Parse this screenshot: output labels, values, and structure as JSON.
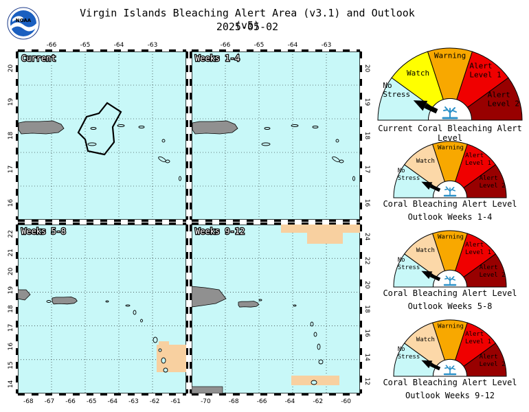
{
  "header": {
    "logo_text": "NOAA",
    "title": "Virgin Islands Bleaching Alert Area (v3.1) and Outlook (v5)",
    "date": "2025-05-02"
  },
  "colors": {
    "ocean": "#c8f8f8",
    "land": "#909090",
    "watch_fill": "#f8d0a0",
    "no_stress": "#c8f8f8",
    "watch": "#ffff00",
    "warning": "#f8a800",
    "alert1": "#f00000",
    "alert2": "#980000",
    "watch_outlook": "#fcd8a8"
  },
  "panels": [
    {
      "id": "current",
      "label": "Current",
      "top_ticks": [
        "-66",
        "-65",
        "-64",
        "-63"
      ],
      "left_ticks": [
        "20",
        "19",
        "18",
        "17",
        "16"
      ],
      "right_ticks": [],
      "bottom_ticks": []
    },
    {
      "id": "weeks-1-4",
      "label": "Weeks 1-4",
      "top_ticks": [
        "-66",
        "-65",
        "-64",
        "-63"
      ],
      "left_ticks": [],
      "right_ticks": [
        "20",
        "19",
        "18",
        "17",
        "16"
      ],
      "bottom_ticks": []
    },
    {
      "id": "weeks-5-8",
      "label": "Weeks 5-8",
      "top_ticks": [],
      "left_ticks": [
        "22",
        "21",
        "20",
        "19",
        "18",
        "17",
        "16",
        "15",
        "14"
      ],
      "right_ticks": [],
      "bottom_ticks": [
        "-68",
        "-67",
        "-66",
        "-65",
        "-64",
        "-63",
        "-62",
        "-61"
      ]
    },
    {
      "id": "weeks-9-12",
      "label": "Weeks 9-12",
      "top_ticks": [],
      "left_ticks": [],
      "right_ticks": [
        "24",
        "22",
        "20",
        "18",
        "16",
        "14",
        "12"
      ],
      "bottom_ticks": [
        "-70",
        "-68",
        "-66",
        "-64",
        "-62",
        "-60"
      ]
    }
  ],
  "gauges": [
    {
      "id": "current",
      "labels": {
        "no_stress": "No Stress",
        "watch": "Watch",
        "warning": "Warning",
        "alert1": "Alert Level 1",
        "alert2": "Alert Level 2"
      },
      "caption_1": "Current Coral Bleaching Alert Level",
      "caption_2": "",
      "level": "No Stress"
    },
    {
      "id": "outlook-1-4",
      "labels": {
        "no_stress": "No Stress",
        "watch": "Watch",
        "warning": "Warning",
        "alert1": "Alert Level 1",
        "alert2": "Alert Level 2"
      },
      "caption_1": "Coral Bleaching Alert Level",
      "caption_2": "Outlook Weeks 1-4",
      "level": "No Stress"
    },
    {
      "id": "outlook-5-8",
      "labels": {
        "no_stress": "No Stress",
        "watch": "Watch",
        "warning": "Warning",
        "alert1": "Alert Level 1",
        "alert2": "Alert Level 2"
      },
      "caption_1": "Coral Bleaching Alert Level",
      "caption_2": "Outlook Weeks 5-8",
      "level": "No Stress"
    },
    {
      "id": "outlook-9-12",
      "labels": {
        "no_stress": "No Stress",
        "watch": "Watch",
        "warning": "Warning",
        "alert1": "Alert Level 1",
        "alert2": "Alert Level 2"
      },
      "caption_1": "Coral Bleaching Alert Level",
      "caption_2": "Outlook Weeks 9-12",
      "level": "No Stress"
    }
  ]
}
